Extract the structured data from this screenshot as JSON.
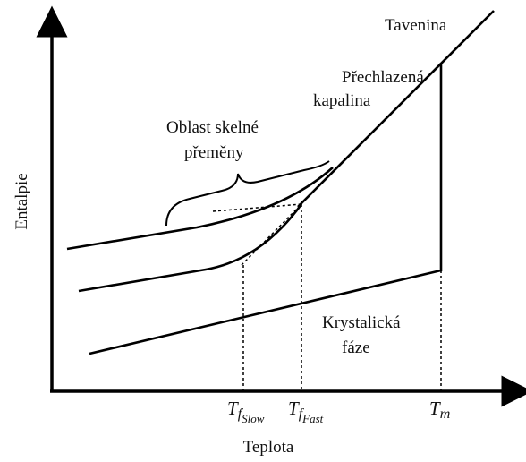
{
  "axes": {
    "y_label": "Entalpie",
    "x_label": "Teplota"
  },
  "labels": {
    "melt": "Tavenina",
    "supercooled_1": "Přechlazená",
    "supercooled_2": "kapalina",
    "glass_1": "Oblast skelné",
    "glass_2": "přeměny",
    "crystal_1": "Krystalická",
    "crystal_2": "fáze"
  },
  "ticks": [
    {
      "main": "T",
      "sub": "f",
      "subsub": "Slow"
    },
    {
      "main": "T",
      "sub": "f",
      "subsub": "Fast"
    },
    {
      "main": "T",
      "sub": "m"
    }
  ]
}
